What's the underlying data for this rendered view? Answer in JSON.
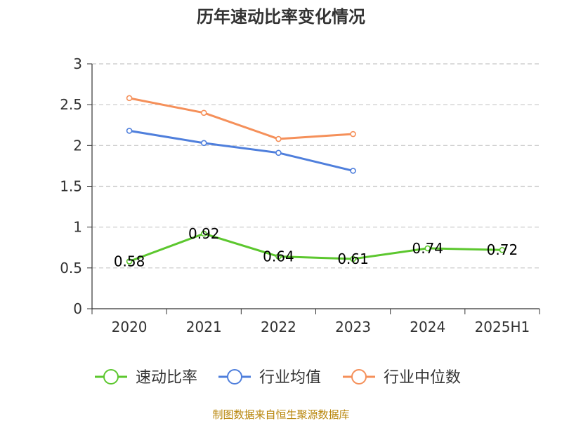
{
  "chart_data": {
    "type": "line",
    "title": "历年速动比率变化情况",
    "categories": [
      "2020",
      "2021",
      "2022",
      "2023",
      "2024",
      "2025H1"
    ],
    "ylim": [
      0,
      3
    ],
    "yticks": [
      0,
      0.5,
      1,
      1.5,
      2,
      2.5,
      3
    ],
    "grid": "horizontal dashed",
    "legend_position": "bottom",
    "series": [
      {
        "name": "速动比率",
        "color": "#5cc72e",
        "values": [
          0.58,
          0.92,
          0.64,
          0.61,
          0.74,
          0.72
        ],
        "labels": [
          "0.58",
          "0.92",
          "0.64",
          "0.61",
          "0.74",
          "0.72"
        ]
      },
      {
        "name": "行业均值",
        "color": "#4f7fdc",
        "values": [
          2.18,
          2.03,
          1.91,
          1.69,
          null,
          null
        ]
      },
      {
        "name": "行业中位数",
        "color": "#f5905a",
        "values": [
          2.58,
          2.4,
          2.08,
          2.14,
          null,
          null
        ]
      }
    ],
    "source": "制图数据来自恒生聚源数据库"
  }
}
